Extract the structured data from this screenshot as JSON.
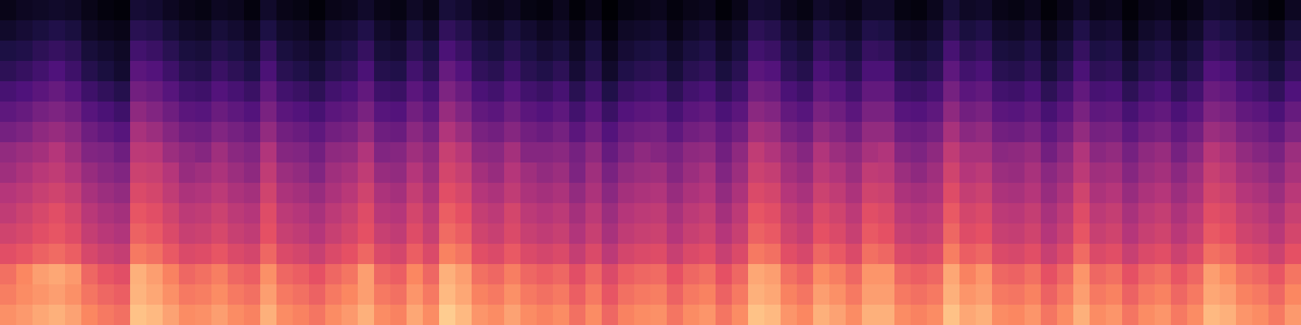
{
  "chart_data": {
    "type": "heatmap",
    "zlim": [
      0,
      100
    ],
    "cells": [
      [
        4,
        6,
        7,
        8,
        7,
        4,
        2,
        1,
        10,
        9,
        6,
        4,
        3,
        6,
        5,
        2,
        8,
        4,
        3,
        1,
        4,
        5,
        8,
        4,
        3,
        7,
        4,
        11,
        9,
        5,
        4,
        6,
        3,
        2,
        5,
        1,
        4,
        0,
        3,
        4,
        5,
        2,
        4,
        5,
        1,
        4,
        10,
        9,
        5,
        3,
        8,
        6,
        4,
        8,
        8,
        3,
        2,
        5,
        11,
        7,
        8,
        4,
        3,
        5,
        1,
        4,
        8,
        4,
        5,
        1,
        4,
        5,
        2,
        4,
        9,
        8,
        5,
        3,
        1,
        6
      ],
      [
        8,
        10,
        12,
        14,
        12,
        7,
        5,
        4,
        16,
        15,
        11,
        8,
        7,
        11,
        9,
        6,
        13,
        8,
        7,
        4,
        9,
        10,
        14,
        8,
        6,
        12,
        8,
        18,
        15,
        10,
        8,
        12,
        9,
        6,
        8,
        4,
        9,
        2,
        7,
        8,
        9,
        4,
        8,
        10,
        5,
        8,
        17,
        15,
        10,
        7,
        14,
        11,
        8,
        14,
        13,
        7,
        6,
        9,
        17,
        12,
        14,
        8,
        7,
        10,
        4,
        8,
        14,
        9,
        10,
        3,
        8,
        10,
        5,
        8,
        15,
        13,
        10,
        8,
        5,
        11
      ],
      [
        13,
        14,
        17,
        19,
        17,
        11,
        9,
        7,
        22,
        20,
        16,
        12,
        11,
        15,
        13,
        10,
        19,
        12,
        10,
        8,
        12,
        14,
        19,
        11,
        10,
        17,
        13,
        24,
        20,
        14,
        12,
        16,
        13,
        10,
        12,
        7,
        13,
        5,
        10,
        12,
        13,
        8,
        12,
        14,
        8,
        12,
        22,
        20,
        14,
        11,
        19,
        16,
        12,
        19,
        18,
        11,
        10,
        13,
        23,
        17,
        19,
        12,
        11,
        14,
        8,
        12,
        19,
        13,
        14,
        7,
        12,
        14,
        9,
        12,
        20,
        18,
        14,
        12,
        9,
        15
      ],
      [
        17,
        19,
        22,
        25,
        21,
        15,
        12,
        9,
        28,
        26,
        21,
        16,
        15,
        20,
        17,
        14,
        24,
        16,
        14,
        11,
        16,
        18,
        24,
        15,
        14,
        22,
        17,
        31,
        26,
        18,
        16,
        21,
        16,
        14,
        17,
        10,
        16,
        8,
        14,
        16,
        17,
        11,
        16,
        18,
        12,
        16,
        28,
        26,
        18,
        15,
        24,
        21,
        16,
        24,
        24,
        15,
        14,
        17,
        29,
        22,
        24,
        16,
        15,
        18,
        11,
        16,
        24,
        17,
        18,
        11,
        16,
        18,
        12,
        16,
        26,
        24,
        18,
        16,
        12,
        19
      ],
      [
        23,
        25,
        28,
        31,
        27,
        21,
        18,
        15,
        34,
        32,
        27,
        22,
        21,
        26,
        23,
        20,
        30,
        22,
        20,
        17,
        22,
        24,
        30,
        21,
        20,
        28,
        23,
        37,
        32,
        24,
        22,
        27,
        22,
        20,
        23,
        16,
        22,
        14,
        20,
        22,
        23,
        17,
        22,
        24,
        18,
        22,
        34,
        32,
        24,
        21,
        30,
        27,
        22,
        30,
        30,
        21,
        20,
        23,
        35,
        28,
        30,
        22,
        21,
        24,
        17,
        22,
        30,
        23,
        24,
        17,
        22,
        24,
        18,
        22,
        32,
        30,
        24,
        22,
        18,
        25
      ],
      [
        29,
        31,
        35,
        37,
        34,
        27,
        24,
        21,
        41,
        38,
        33,
        28,
        27,
        32,
        29,
        26,
        36,
        28,
        26,
        23,
        28,
        30,
        36,
        27,
        26,
        34,
        29,
        43,
        38,
        30,
        28,
        33,
        28,
        26,
        29,
        22,
        28,
        20,
        26,
        28,
        29,
        23,
        28,
        30,
        24,
        28,
        40,
        38,
        30,
        27,
        36,
        33,
        28,
        36,
        36,
        27,
        26,
        29,
        41,
        34,
        36,
        28,
        27,
        30,
        23,
        28,
        36,
        29,
        30,
        23,
        28,
        30,
        24,
        28,
        38,
        36,
        30,
        28,
        24,
        31
      ],
      [
        35,
        37,
        41,
        43,
        40,
        33,
        30,
        27,
        47,
        44,
        39,
        34,
        33,
        38,
        35,
        32,
        42,
        34,
        32,
        29,
        34,
        36,
        42,
        33,
        32,
        40,
        35,
        49,
        44,
        36,
        34,
        39,
        34,
        32,
        35,
        28,
        34,
        26,
        32,
        34,
        35,
        29,
        34,
        36,
        30,
        34,
        46,
        44,
        36,
        33,
        42,
        39,
        34,
        42,
        42,
        33,
        32,
        35,
        47,
        40,
        42,
        34,
        33,
        36,
        29,
        34,
        42,
        35,
        36,
        29,
        34,
        36,
        30,
        34,
        44,
        42,
        36,
        34,
        30,
        37
      ],
      [
        42,
        44,
        46,
        50,
        45,
        38,
        37,
        33,
        52,
        51,
        44,
        41,
        39,
        45,
        40,
        38,
        49,
        39,
        38,
        34,
        41,
        42,
        49,
        38,
        39,
        45,
        41,
        55,
        51,
        41,
        40,
        46,
        39,
        39,
        40,
        35,
        41,
        31,
        37,
        41,
        39,
        36,
        41,
        42,
        34,
        41,
        53,
        49,
        43,
        39,
        49,
        44,
        41,
        47,
        49,
        39,
        37,
        41,
        53,
        47,
        47,
        40,
        41,
        43,
        34,
        40,
        49,
        40,
        42,
        35,
        41,
        43,
        35,
        40,
        51,
        48,
        42,
        39,
        36,
        44
      ],
      [
        45,
        48,
        51,
        53,
        49,
        43,
        40,
        38,
        56,
        55,
        50,
        43,
        45,
        48,
        44,
        41,
        53,
        44,
        42,
        38,
        45,
        47,
        53,
        43,
        42,
        50,
        44,
        58,
        55,
        46,
        43,
        50,
        45,
        42,
        44,
        37,
        45,
        36,
        42,
        44,
        45,
        39,
        44,
        47,
        38,
        44,
        56,
        54,
        46,
        43,
        52,
        49,
        44,
        53,
        52,
        44,
        41,
        45,
        57,
        50,
        52,
        44,
        43,
        47,
        40,
        44,
        52,
        45,
        46,
        39,
        44,
        46,
        40,
        45,
        55,
        52,
        46,
        44,
        40,
        47
      ],
      [
        50,
        52,
        55,
        57,
        54,
        47,
        44,
        42,
        60,
        58,
        53,
        48,
        49,
        52,
        48,
        46,
        57,
        48,
        46,
        43,
        48,
        51,
        57,
        48,
        46,
        54,
        48,
        62,
        59,
        50,
        48,
        53,
        48,
        46,
        48,
        42,
        48,
        40,
        46,
        48,
        49,
        43,
        48,
        50,
        42,
        48,
        60,
        58,
        50,
        47,
        56,
        53,
        48,
        57,
        56,
        48,
        46,
        48,
        61,
        54,
        56,
        48,
        47,
        50,
        43,
        48,
        57,
        48,
        50,
        43,
        48,
        50,
        44,
        48,
        58,
        56,
        50,
        48,
        44,
        51
      ],
      [
        53,
        56,
        59,
        62,
        58,
        51,
        48,
        46,
        64,
        62,
        57,
        52,
        53,
        56,
        52,
        50,
        61,
        52,
        50,
        47,
        52,
        55,
        61,
        51,
        50,
        58,
        52,
        66,
        63,
        54,
        52,
        58,
        52,
        50,
        52,
        46,
        52,
        44,
        50,
        52,
        53,
        47,
        52,
        54,
        46,
        52,
        64,
        62,
        54,
        51,
        60,
        57,
        52,
        62,
        60,
        52,
        50,
        52,
        65,
        58,
        60,
        52,
        51,
        54,
        47,
        52,
        61,
        52,
        54,
        47,
        52,
        54,
        48,
        52,
        62,
        60,
        54,
        52,
        48,
        55
      ],
      [
        57,
        59,
        62,
        64,
        61,
        54,
        51,
        49,
        67,
        65,
        60,
        55,
        56,
        59,
        55,
        53,
        63,
        55,
        53,
        50,
        55,
        58,
        63,
        55,
        53,
        61,
        55,
        69,
        66,
        57,
        55,
        60,
        55,
        53,
        55,
        49,
        55,
        47,
        53,
        55,
        56,
        50,
        55,
        57,
        50,
        55,
        67,
        65,
        57,
        54,
        63,
        60,
        55,
        65,
        63,
        55,
        53,
        55,
        68,
        61,
        63,
        55,
        54,
        57,
        50,
        55,
        64,
        55,
        57,
        50,
        55,
        57,
        51,
        55,
        65,
        63,
        57,
        55,
        51,
        58
      ],
      [
        62,
        64,
        67,
        69,
        66,
        59,
        56,
        54,
        72,
        70,
        65,
        60,
        61,
        64,
        60,
        58,
        68,
        60,
        58,
        55,
        60,
        63,
        68,
        60,
        58,
        66,
        60,
        74,
        71,
        62,
        60,
        65,
        60,
        58,
        60,
        54,
        60,
        52,
        58,
        60,
        61,
        55,
        60,
        62,
        55,
        60,
        72,
        70,
        62,
        59,
        68,
        65,
        60,
        70,
        68,
        60,
        58,
        60,
        73,
        66,
        68,
        60,
        59,
        62,
        55,
        60,
        69,
        60,
        62,
        55,
        60,
        62,
        56,
        60,
        70,
        68,
        62,
        60,
        56,
        63
      ],
      [
        70,
        75,
        80,
        82,
        79,
        68,
        64,
        62,
        84,
        80,
        74,
        68,
        70,
        73,
        68,
        66,
        77,
        68,
        66,
        63,
        68,
        71,
        80,
        68,
        66,
        75,
        68,
        84,
        80,
        70,
        68,
        73,
        68,
        66,
        68,
        62,
        68,
        60,
        66,
        68,
        69,
        63,
        68,
        70,
        63,
        68,
        82,
        80,
        70,
        67,
        76,
        73,
        68,
        78,
        78,
        68,
        66,
        68,
        82,
        74,
        78,
        68,
        67,
        70,
        63,
        68,
        78,
        68,
        70,
        63,
        68,
        70,
        64,
        68,
        80,
        76,
        70,
        68,
        64,
        71
      ],
      [
        73,
        76,
        78,
        80,
        77,
        71,
        68,
        66,
        85,
        82,
        77,
        72,
        73,
        76,
        72,
        70,
        80,
        72,
        70,
        67,
        72,
        75,
        80,
        72,
        70,
        78,
        72,
        86,
        82,
        74,
        72,
        77,
        72,
        70,
        72,
        66,
        72,
        64,
        70,
        72,
        73,
        67,
        72,
        74,
        67,
        72,
        84,
        82,
        74,
        71,
        80,
        77,
        72,
        80,
        80,
        72,
        70,
        72,
        84,
        78,
        80,
        72,
        71,
        74,
        67,
        72,
        80,
        72,
        74,
        67,
        72,
        74,
        68,
        72,
        82,
        80,
        74,
        72,
        68,
        75
      ],
      [
        77,
        79,
        82,
        84,
        81,
        75,
        72,
        70,
        88,
        86,
        81,
        76,
        77,
        80,
        76,
        74,
        84,
        76,
        74,
        71,
        76,
        79,
        84,
        76,
        74,
        82,
        76,
        90,
        86,
        78,
        76,
        81,
        76,
        74,
        76,
        70,
        76,
        68,
        74,
        76,
        77,
        71,
        76,
        78,
        71,
        76,
        88,
        86,
        78,
        75,
        84,
        81,
        76,
        84,
        84,
        76,
        74,
        76,
        88,
        82,
        84,
        76,
        75,
        78,
        71,
        76,
        84,
        76,
        78,
        71,
        76,
        78,
        72,
        76,
        86,
        84,
        78,
        76,
        72,
        79
      ]
    ]
  }
}
